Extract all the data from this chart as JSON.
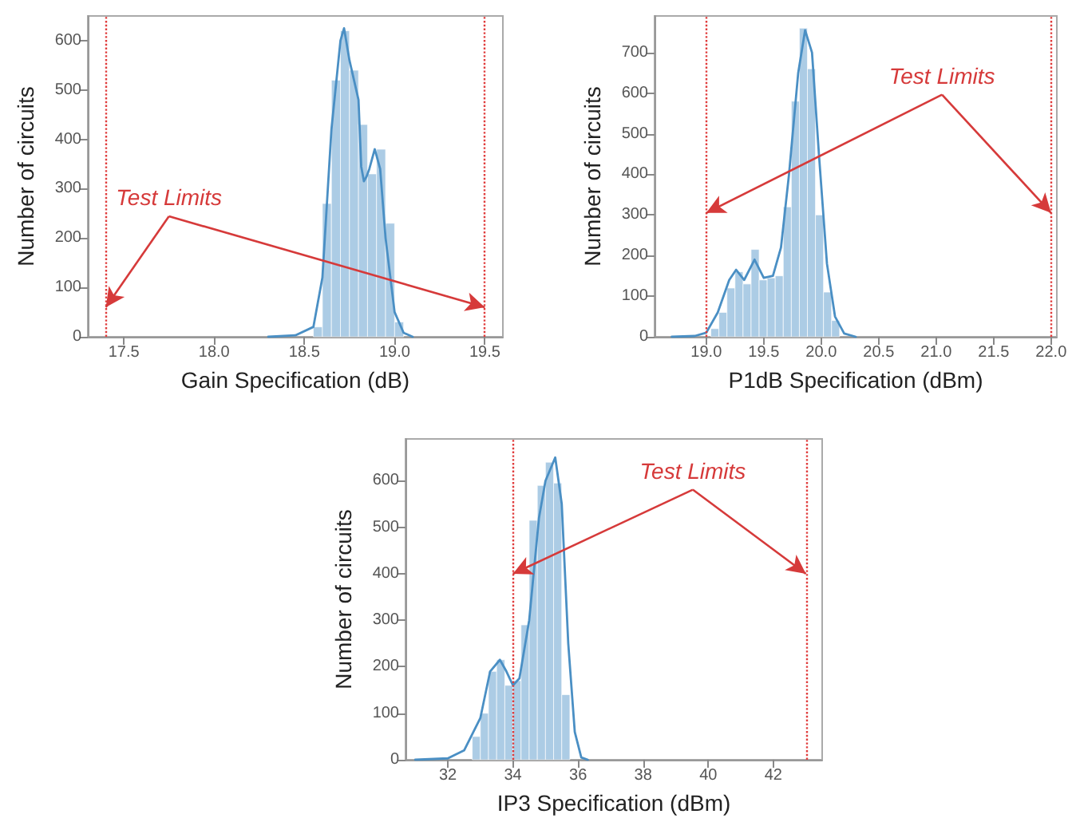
{
  "chart_data": [
    {
      "type": "histogram",
      "xlabel": "Gain Specification (dB)",
      "ylabel": "Number of circuits",
      "xlim": [
        17.3,
        19.6
      ],
      "xticks": [
        17.5,
        {
          "value": 18,
          "label": "18.0"
        },
        18.5,
        {
          "value": 19,
          "label": "19.0"
        },
        19.5
      ],
      "ylim": [
        0,
        650
      ],
      "yticks": [
        0,
        100,
        200,
        300,
        400,
        500,
        600
      ],
      "series": [
        {
          "color": "#9dc3e0",
          "bins": [
            18.55,
            18.6,
            18.65,
            18.7,
            18.75,
            18.8,
            18.85,
            18.9,
            18.95,
            19.0,
            19.05
          ],
          "values": [
            20,
            270,
            520,
            620,
            540,
            430,
            330,
            380,
            230,
            30
          ]
        },
        {
          "type": "line",
          "color": "#4a8fc4",
          "x": [
            18.3,
            18.45,
            18.55,
            18.6,
            18.65,
            18.7,
            18.72,
            18.75,
            18.8,
            18.815,
            18.83,
            18.845,
            18.86,
            18.89,
            18.92,
            18.95,
            19.0,
            19.05,
            19.1
          ],
          "values": [
            0,
            3,
            20,
            120,
            420,
            600,
            625,
            560,
            480,
            345,
            315,
            325,
            340,
            380,
            340,
            200,
            50,
            8,
            0
          ]
        }
      ],
      "ref_lines": [
        {
          "axis": "x",
          "value": 17.4,
          "label": null,
          "color": "#e03c3c",
          "line_style": "dotted"
        },
        {
          "axis": "x",
          "value": 19.5,
          "label": null,
          "color": "#e03c3c",
          "line_style": "dotted"
        }
      ],
      "annotations": [
        {
          "text": "Test Limits",
          "x": 17.4,
          "y": 60
        }
      ]
    },
    {
      "type": "histogram",
      "xlabel": "P1dB Specification (dBm)",
      "ylabel": "Number of circuits",
      "xlim": [
        18.55,
        22.05
      ],
      "xticks": [
        {
          "value": 19,
          "label": "19.0"
        },
        19.5,
        {
          "value": 20,
          "label": "20.0"
        },
        20.5,
        {
          "value": 21,
          "label": "21.0"
        },
        21.5,
        {
          "value": 22,
          "label": "22.0"
        }
      ],
      "ylim": [
        0,
        790
      ],
      "yticks": [
        0,
        100,
        200,
        300,
        400,
        500,
        600,
        700
      ],
      "series": [
        {
          "color": "#9dc3e0",
          "bins": [
            19.04,
            19.11,
            19.18,
            19.25,
            19.32,
            19.39,
            19.46,
            19.53,
            19.6,
            19.67,
            19.74,
            19.81,
            19.88,
            19.95,
            20.02,
            20.09,
            20.16
          ],
          "values": [
            20,
            60,
            120,
            160,
            130,
            215,
            140,
            145,
            150,
            320,
            580,
            760,
            660,
            300,
            110,
            40
          ]
        },
        {
          "type": "line",
          "color": "#4a8fc4",
          "x": [
            18.7,
            18.9,
            19.0,
            19.1,
            19.2,
            19.26,
            19.33,
            19.42,
            19.5,
            19.58,
            19.65,
            19.72,
            19.8,
            19.86,
            19.92,
            19.98,
            20.05,
            20.12,
            20.2,
            20.3
          ],
          "values": [
            0,
            2,
            10,
            60,
            140,
            165,
            140,
            190,
            145,
            150,
            220,
            400,
            650,
            755,
            700,
            450,
            180,
            50,
            8,
            0
          ]
        }
      ],
      "ref_lines": [
        {
          "axis": "x",
          "value": 19,
          "label": null,
          "color": "#e03c3c",
          "line_style": "dotted"
        },
        {
          "axis": "x",
          "value": 22,
          "label": null,
          "color": "#e03c3c",
          "line_style": "dotted"
        }
      ],
      "annotations": [
        {
          "text": "Test Limits",
          "x": 19,
          "y": 305
        }
      ]
    },
    {
      "type": "histogram",
      "xlabel": "IP3 Specification (dBm)",
      "ylabel": "Number of circuits",
      "xlim": [
        30.7,
        43.5
      ],
      "xticks": [
        32,
        34,
        36,
        38,
        40,
        42
      ],
      "ylim": [
        0,
        690
      ],
      "yticks": [
        0,
        100,
        200,
        300,
        400,
        500,
        600
      ],
      "series": [
        {
          "color": "#9dc3e0",
          "bins": [
            32.75,
            33,
            33.25,
            33.5,
            33.75,
            34,
            34.25,
            34.5,
            34.75,
            35,
            35.25,
            35.5,
            35.75
          ],
          "values": [
            50,
            100,
            190,
            215,
            160,
            170,
            290,
            515,
            590,
            640,
            595,
            140
          ]
        },
        {
          "type": "line",
          "color": "#4a8fc4",
          "x": [
            31,
            32,
            32.5,
            33,
            33.3,
            33.6,
            33.8,
            34,
            34.2,
            34.5,
            34.8,
            35,
            35.3,
            35.5,
            35.7,
            35.9,
            36.1,
            36.3
          ],
          "values": [
            0,
            3,
            20,
            90,
            190,
            215,
            190,
            160,
            175,
            300,
            520,
            600,
            650,
            550,
            250,
            60,
            5,
            0
          ]
        }
      ],
      "ref_lines": [
        {
          "axis": "x",
          "value": 34,
          "label": null,
          "color": "#e03c3c",
          "line_style": "dotted"
        },
        {
          "axis": "x",
          "value": 43,
          "label": null,
          "color": "#e03c3c",
          "line_style": "dotted"
        }
      ],
      "annotations": [
        {
          "text": "Test Limits",
          "x": 34,
          "y": 400
        }
      ]
    }
  ]
}
